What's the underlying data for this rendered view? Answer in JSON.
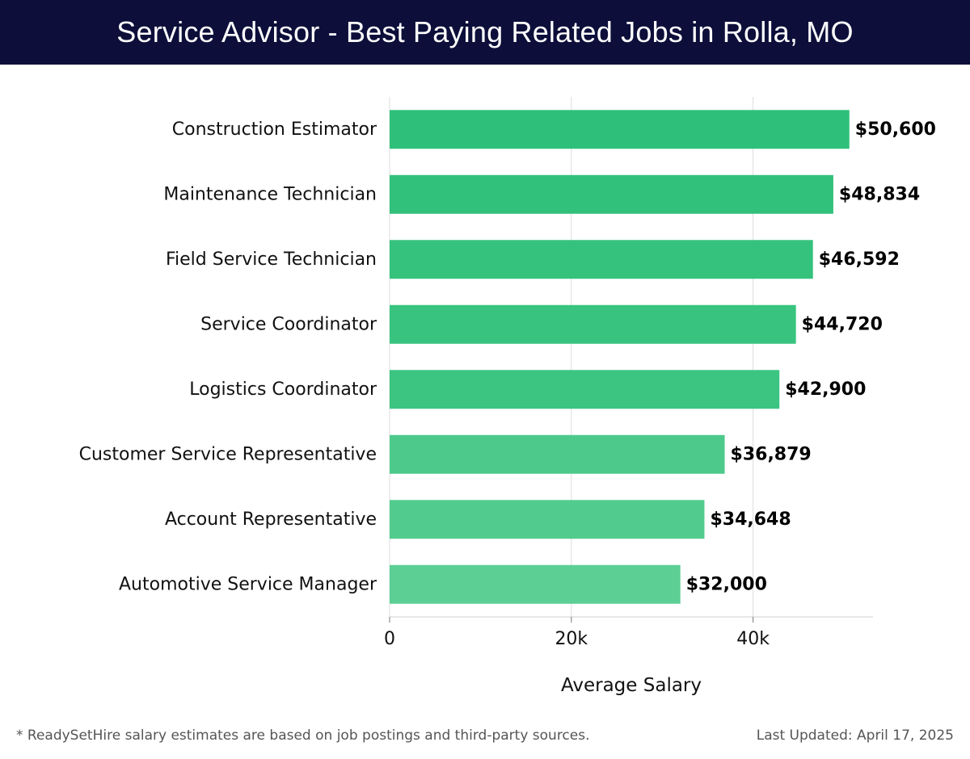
{
  "header": {
    "title": "Service Advisor - Best Paying Related Jobs in Rolla, MO"
  },
  "chart_data": {
    "type": "bar",
    "orientation": "horizontal",
    "categories": [
      "Construction Estimator",
      "Maintenance Technician",
      "Field Service Technician",
      "Service Coordinator",
      "Logistics Coordinator",
      "Customer Service Representative",
      "Account Representative",
      "Automotive Service Manager"
    ],
    "values": [
      50600,
      48834,
      46592,
      44720,
      42900,
      36879,
      34648,
      32000
    ],
    "value_labels": [
      "$50,600",
      "$48,834",
      "$46,592",
      "$44,720",
      "$42,900",
      "$36,879",
      "$34,648",
      "$32,000"
    ],
    "bar_colors": [
      "#2ec07a",
      "#31c17b",
      "#35c27d",
      "#38c47f",
      "#3cc581",
      "#4dca8b",
      "#52cc8e",
      "#5ccf94"
    ],
    "xlabel": "Average Salary",
    "ylabel": "",
    "xlim": [
      0,
      53200
    ],
    "x_ticks": [
      0,
      20000,
      40000
    ],
    "x_tick_labels": [
      "0",
      "20k",
      "40k"
    ],
    "grid": true,
    "legend": "none"
  },
  "footer": {
    "note": "* ReadySetHire salary estimates are based on job postings and third-party sources.",
    "updated": "Last Updated: April 17, 2025"
  }
}
